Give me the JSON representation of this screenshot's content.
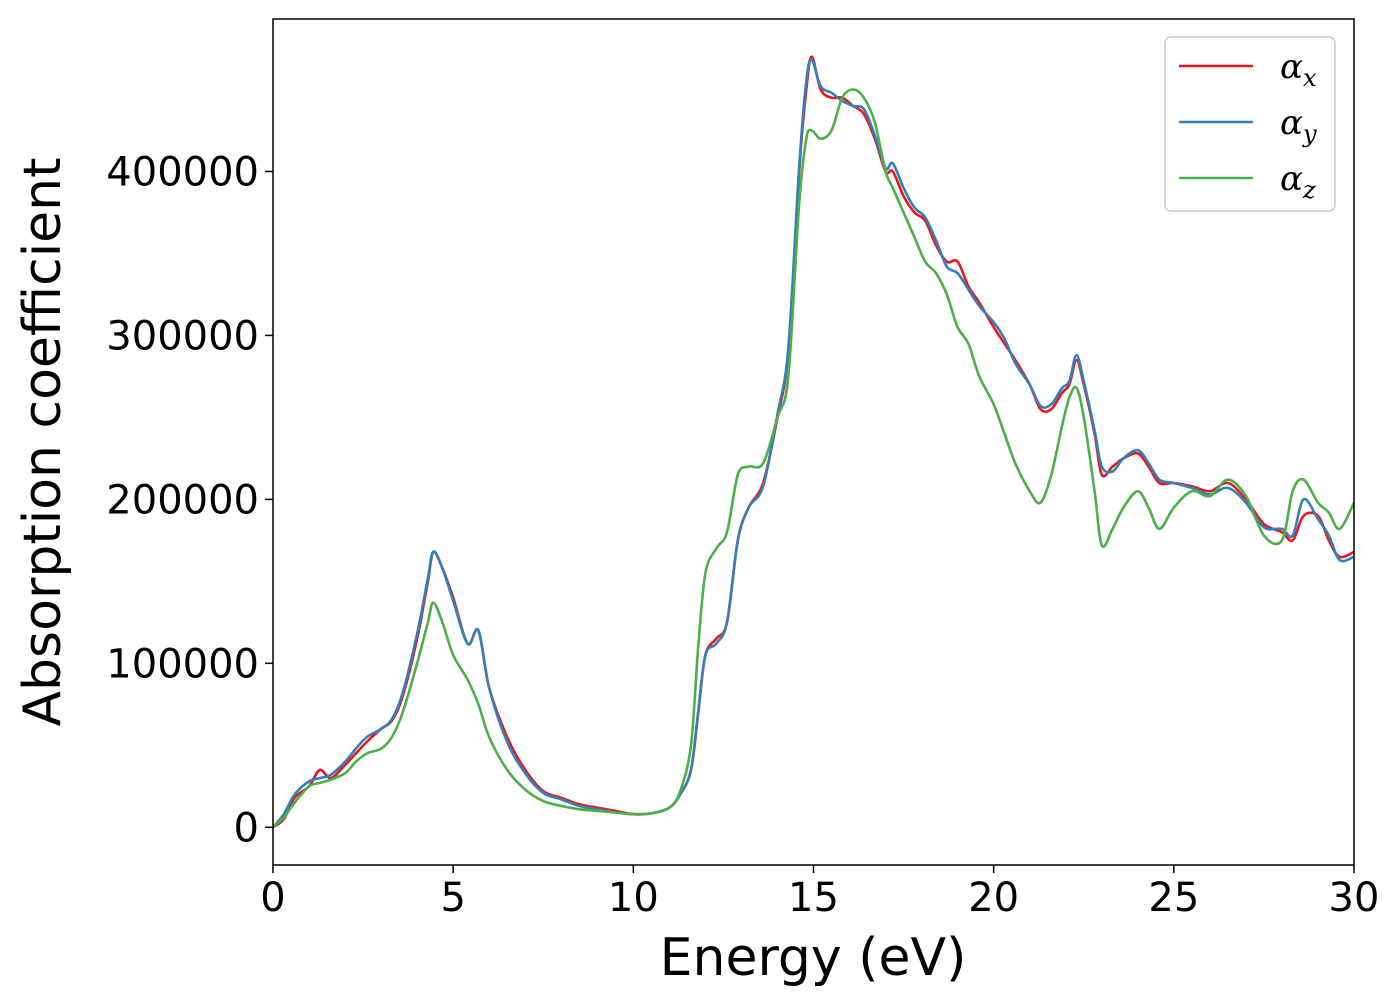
{
  "chart_data": {
    "type": "line",
    "title": "",
    "xlabel": "Energy (eV)",
    "ylabel": "Absorption coefficient",
    "xlim": [
      0,
      30
    ],
    "ylim": [
      -23000,
      493000
    ],
    "xticks": [
      0,
      5,
      10,
      15,
      20,
      25,
      30
    ],
    "yticks": [
      0,
      100000,
      200000,
      300000,
      400000
    ],
    "grid": false,
    "legend_position": "top-right",
    "series": [
      {
        "name": "α",
        "subscript": "x",
        "color": "#e41a1c",
        "x": [
          0,
          0.3,
          0.6,
          1.0,
          1.3,
          1.6,
          2.0,
          2.3,
          2.6,
          3.0,
          3.3,
          3.6,
          4.0,
          4.3,
          4.45,
          4.7,
          5.0,
          5.4,
          5.7,
          6.0,
          6.5,
          7.0,
          7.5,
          8.0,
          8.5,
          9.0,
          9.5,
          10.0,
          10.5,
          11.0,
          11.3,
          11.6,
          11.8,
          12.0,
          12.3,
          12.6,
          12.9,
          13.2,
          13.6,
          14.0,
          14.3,
          14.6,
          14.8,
          14.95,
          15.2,
          15.5,
          15.8,
          16.1,
          16.4,
          16.7,
          17.0,
          17.2,
          17.5,
          17.8,
          18.1,
          18.4,
          18.7,
          19.0,
          19.3,
          19.6,
          20.0,
          20.3,
          20.6,
          21.0,
          21.3,
          21.6,
          21.9,
          22.1,
          22.3,
          22.5,
          22.8,
          23.0,
          23.3,
          23.6,
          24.0,
          24.3,
          24.6,
          25.0,
          25.5,
          26.0,
          26.5,
          27.0,
          27.5,
          28.0,
          28.3,
          28.6,
          29.0,
          29.3,
          29.6,
          30.0
        ],
        "y": [
          0,
          5000,
          18000,
          25000,
          35000,
          30000,
          38000,
          45000,
          52000,
          60000,
          65000,
          80000,
          115000,
          150000,
          168000,
          158000,
          140000,
          112000,
          120000,
          85000,
          55000,
          35000,
          22000,
          18000,
          14000,
          12000,
          10000,
          8000,
          8500,
          12000,
          20000,
          35000,
          70000,
          105000,
          115000,
          125000,
          175000,
          195000,
          210000,
          250000,
          290000,
          400000,
          450000,
          470000,
          450000,
          445000,
          445000,
          440000,
          435000,
          420000,
          400000,
          400000,
          385000,
          375000,
          370000,
          355000,
          345000,
          345000,
          330000,
          320000,
          305000,
          295000,
          285000,
          270000,
          255000,
          255000,
          265000,
          270000,
          285000,
          270000,
          240000,
          215000,
          220000,
          225000,
          228000,
          220000,
          210000,
          210000,
          208000,
          205000,
          210000,
          200000,
          185000,
          180000,
          175000,
          190000,
          190000,
          175000,
          165000,
          168000
        ]
      },
      {
        "name": "α",
        "subscript": "y",
        "color": "#377eb8",
        "x": [
          0,
          0.3,
          0.6,
          1.0,
          1.3,
          1.6,
          2.0,
          2.3,
          2.6,
          3.0,
          3.3,
          3.6,
          4.0,
          4.3,
          4.45,
          4.7,
          5.0,
          5.4,
          5.7,
          6.0,
          6.5,
          7.0,
          7.5,
          8.0,
          8.5,
          9.0,
          9.5,
          10.0,
          10.5,
          11.0,
          11.3,
          11.6,
          11.8,
          12.0,
          12.3,
          12.6,
          12.9,
          13.2,
          13.6,
          14.0,
          14.3,
          14.6,
          14.8,
          14.95,
          15.2,
          15.5,
          15.8,
          16.1,
          16.4,
          16.7,
          17.0,
          17.2,
          17.5,
          17.8,
          18.1,
          18.4,
          18.7,
          19.0,
          19.3,
          19.6,
          20.0,
          20.3,
          20.6,
          21.0,
          21.3,
          21.6,
          21.9,
          22.1,
          22.3,
          22.5,
          22.8,
          23.0,
          23.3,
          23.6,
          24.0,
          24.3,
          24.6,
          25.0,
          25.5,
          26.0,
          26.5,
          27.0,
          27.5,
          28.0,
          28.3,
          28.6,
          29.0,
          29.3,
          29.6,
          30.0
        ],
        "y": [
          0,
          8000,
          20000,
          28000,
          30000,
          32000,
          40000,
          48000,
          55000,
          60000,
          66000,
          82000,
          118000,
          152000,
          168000,
          158000,
          138000,
          112000,
          120000,
          85000,
          52000,
          33000,
          21000,
          17000,
          13000,
          11000,
          9000,
          8000,
          8500,
          12000,
          20000,
          35000,
          70000,
          105000,
          112000,
          125000,
          175000,
          195000,
          208000,
          252000,
          292000,
          402000,
          455000,
          468000,
          452000,
          448000,
          443000,
          440000,
          438000,
          422000,
          402000,
          405000,
          390000,
          378000,
          372000,
          358000,
          342000,
          338000,
          328000,
          318000,
          308000,
          298000,
          283000,
          270000,
          257000,
          258000,
          268000,
          272000,
          288000,
          272000,
          242000,
          220000,
          217000,
          225000,
          230000,
          222000,
          212000,
          210000,
          207000,
          203000,
          207000,
          198000,
          183000,
          182000,
          178000,
          200000,
          188000,
          178000,
          163000,
          165000
        ]
      },
      {
        "name": "α",
        "subscript": "z",
        "color": "#4daf4a",
        "x": [
          0,
          0.3,
          0.6,
          1.0,
          1.3,
          1.6,
          2.0,
          2.3,
          2.6,
          3.0,
          3.3,
          3.6,
          4.0,
          4.3,
          4.45,
          4.7,
          5.0,
          5.4,
          5.7,
          6.0,
          6.5,
          7.0,
          7.5,
          8.0,
          8.5,
          9.0,
          9.5,
          10.0,
          10.5,
          11.0,
          11.3,
          11.6,
          11.8,
          12.0,
          12.3,
          12.6,
          12.9,
          13.2,
          13.6,
          14.0,
          14.3,
          14.6,
          14.8,
          14.95,
          15.2,
          15.5,
          15.8,
          16.1,
          16.4,
          16.7,
          17.0,
          17.2,
          17.5,
          17.8,
          18.1,
          18.4,
          18.7,
          19.0,
          19.3,
          19.6,
          20.0,
          20.3,
          20.6,
          21.0,
          21.3,
          21.6,
          21.9,
          22.1,
          22.3,
          22.5,
          22.8,
          23.0,
          23.3,
          23.6,
          24.0,
          24.3,
          24.6,
          25.0,
          25.5,
          26.0,
          26.5,
          27.0,
          27.5,
          28.0,
          28.3,
          28.6,
          29.0,
          29.3,
          29.6,
          30.0
        ],
        "y": [
          0,
          6000,
          15000,
          25000,
          27000,
          29000,
          33000,
          40000,
          45000,
          48000,
          55000,
          70000,
          100000,
          125000,
          137000,
          125000,
          105000,
          90000,
          75000,
          55000,
          35000,
          23000,
          16000,
          13000,
          11000,
          10000,
          9000,
          8000,
          8500,
          12000,
          22000,
          50000,
          110000,
          155000,
          170000,
          180000,
          215000,
          220000,
          222000,
          250000,
          275000,
          380000,
          420000,
          425000,
          420000,
          425000,
          445000,
          450000,
          445000,
          430000,
          400000,
          390000,
          375000,
          360000,
          345000,
          338000,
          325000,
          305000,
          295000,
          275000,
          258000,
          240000,
          222000,
          205000,
          198000,
          215000,
          245000,
          262000,
          268000,
          250000,
          205000,
          172000,
          182000,
          195000,
          205000,
          195000,
          182000,
          195000,
          205000,
          202000,
          212000,
          202000,
          178000,
          175000,
          205000,
          212000,
          198000,
          192000,
          182000,
          198000
        ]
      }
    ]
  }
}
